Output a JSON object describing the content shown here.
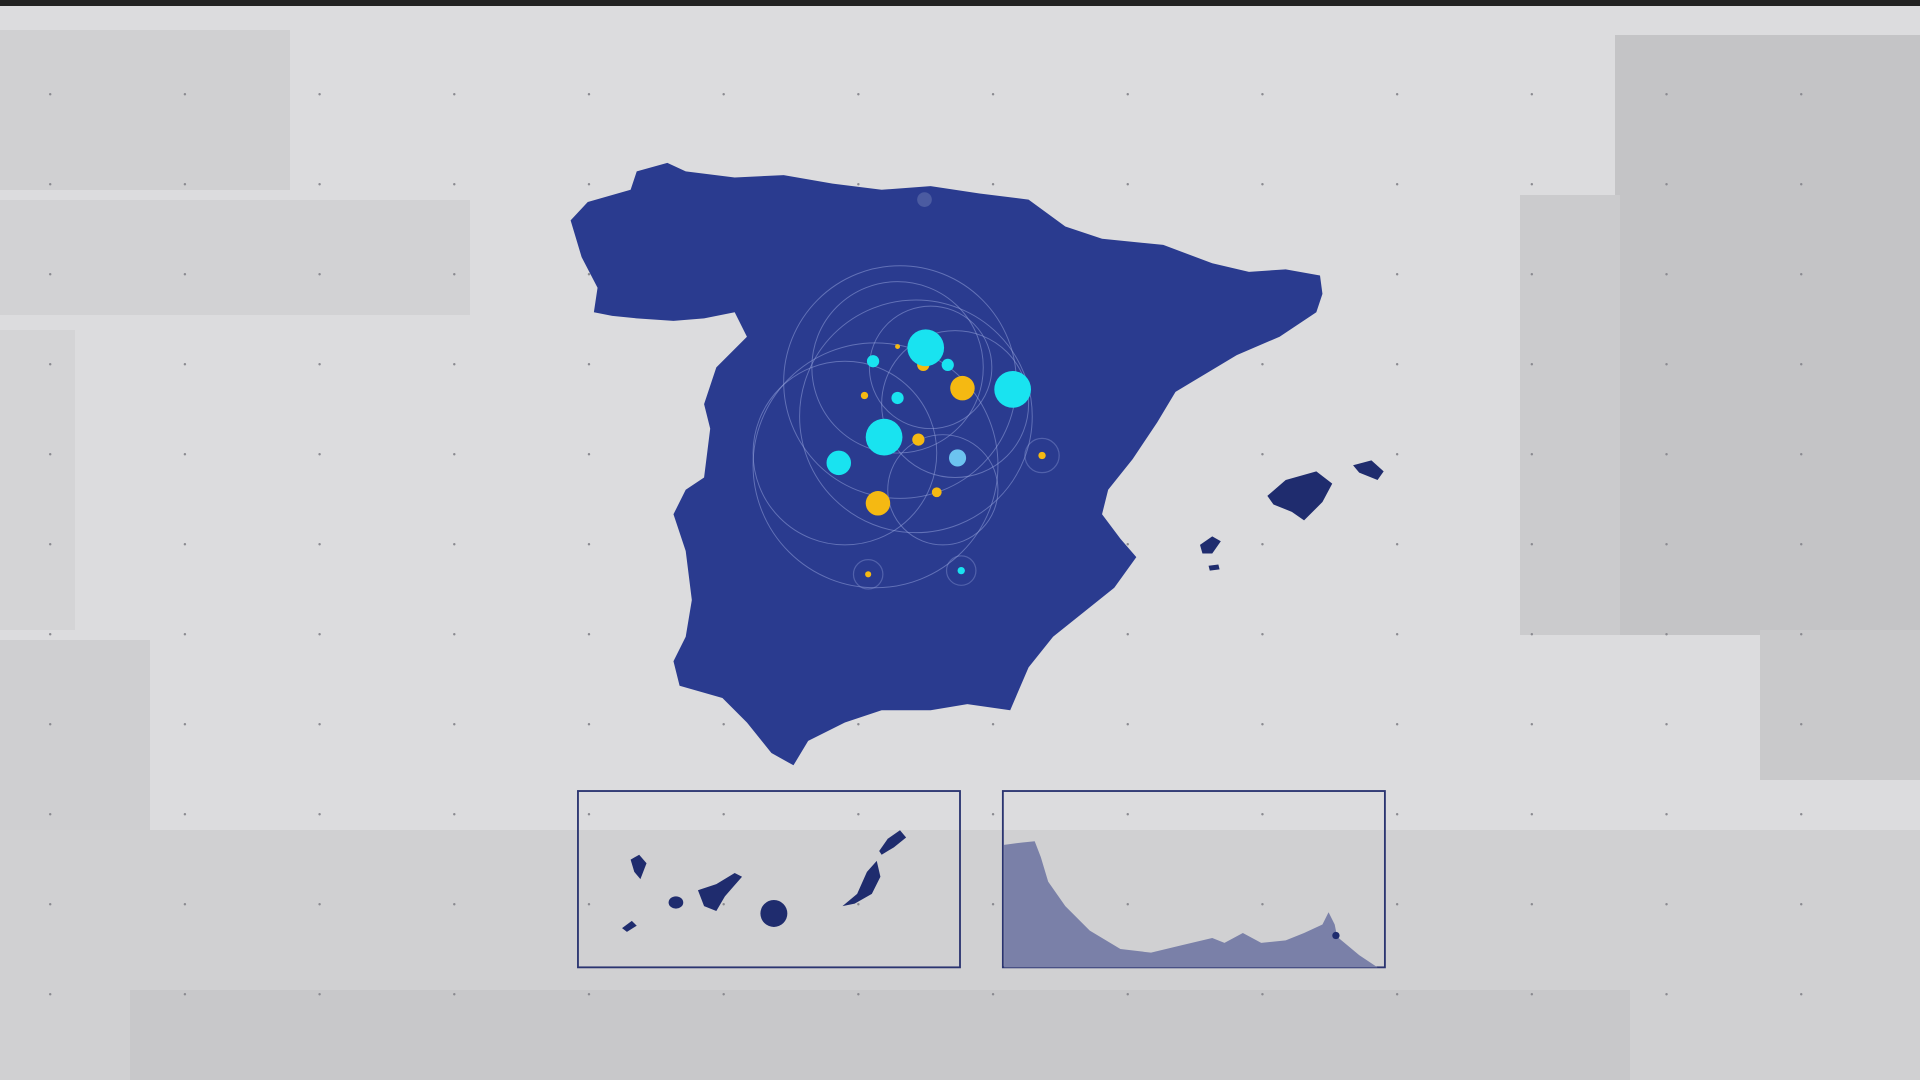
{
  "colors": {
    "background": "#dcdcde",
    "land": "#2a3b8f",
    "land_dark": "#1f2c6e",
    "marker_primary": "#19e3f0",
    "marker_secondary": "#f5b912",
    "marker_tertiary": "#6cc3f0",
    "inset_border": "#2a3470",
    "inset_terrain": "#7a80a8"
  },
  "map": {
    "main_region": "spain-peninsula",
    "islands": [
      "balearic-islands",
      "canary-islands"
    ],
    "insets": [
      "canary-islands-inset",
      "ceuta-melilla-inset"
    ]
  }
}
